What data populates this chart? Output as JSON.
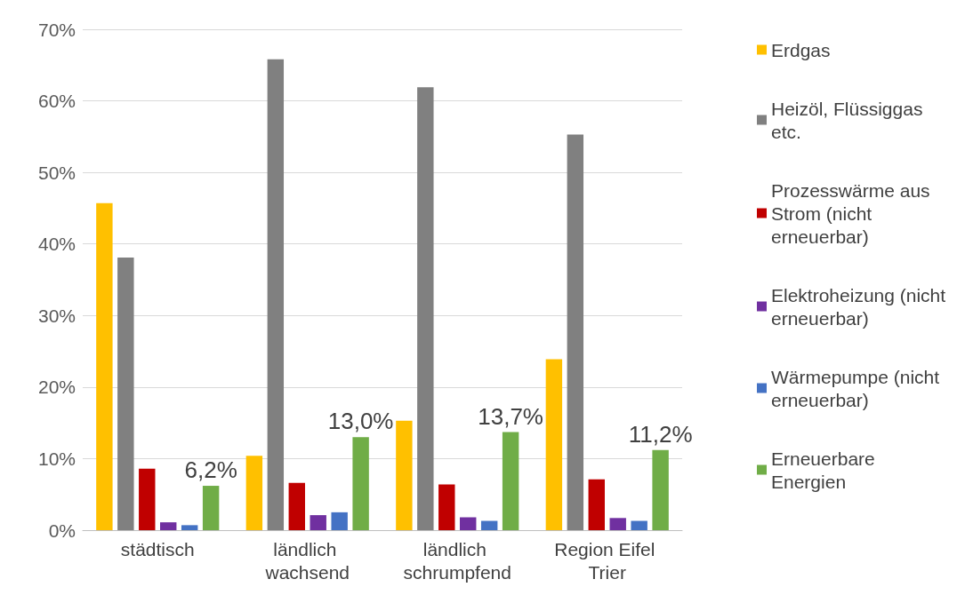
{
  "chart_data": {
    "type": "bar",
    "categories": [
      "städtisch",
      "ländlich wachsend",
      "ländlich schrumpfend",
      "Region Eifel Trier"
    ],
    "series": [
      {
        "name": "Erdgas",
        "color": "#ffc000",
        "values": [
          45.7,
          10.4,
          15.3,
          23.9
        ]
      },
      {
        "name": "Heizöl, Flüssiggas etc.",
        "color": "#808080",
        "values": [
          38.1,
          65.8,
          61.9,
          55.3
        ]
      },
      {
        "name": "Prozesswärme aus Strom (nicht erneuerbar)",
        "color": "#c00000",
        "values": [
          8.6,
          6.6,
          6.4,
          7.1
        ]
      },
      {
        "name": "Elektroheizung (nicht erneuerbar)",
        "color": "#7030a0",
        "values": [
          1.1,
          2.1,
          1.8,
          1.7
        ]
      },
      {
        "name": "Wärmepumpe (nicht erneuerbar)",
        "color": "#4472c4",
        "values": [
          0.7,
          2.5,
          1.3,
          1.3
        ]
      },
      {
        "name": "Erneuerbare Energien",
        "color": "#70ad47",
        "values": [
          6.2,
          13.0,
          13.7,
          11.2
        ],
        "value_labels": [
          "6,2%",
          "13,0%",
          "13,7%",
          "11,2%"
        ]
      }
    ],
    "ylim": [
      0,
      70
    ],
    "yticks": [
      {
        "value": 0,
        "label": "0%"
      },
      {
        "value": 10,
        "label": "10%"
      },
      {
        "value": 20,
        "label": "20%"
      },
      {
        "value": 30,
        "label": "30%"
      },
      {
        "value": 40,
        "label": "40%"
      },
      {
        "value": 50,
        "label": "50%"
      },
      {
        "value": 60,
        "label": "60%"
      },
      {
        "value": 70,
        "label": "70%"
      }
    ],
    "grid": "y",
    "legend": "right"
  }
}
